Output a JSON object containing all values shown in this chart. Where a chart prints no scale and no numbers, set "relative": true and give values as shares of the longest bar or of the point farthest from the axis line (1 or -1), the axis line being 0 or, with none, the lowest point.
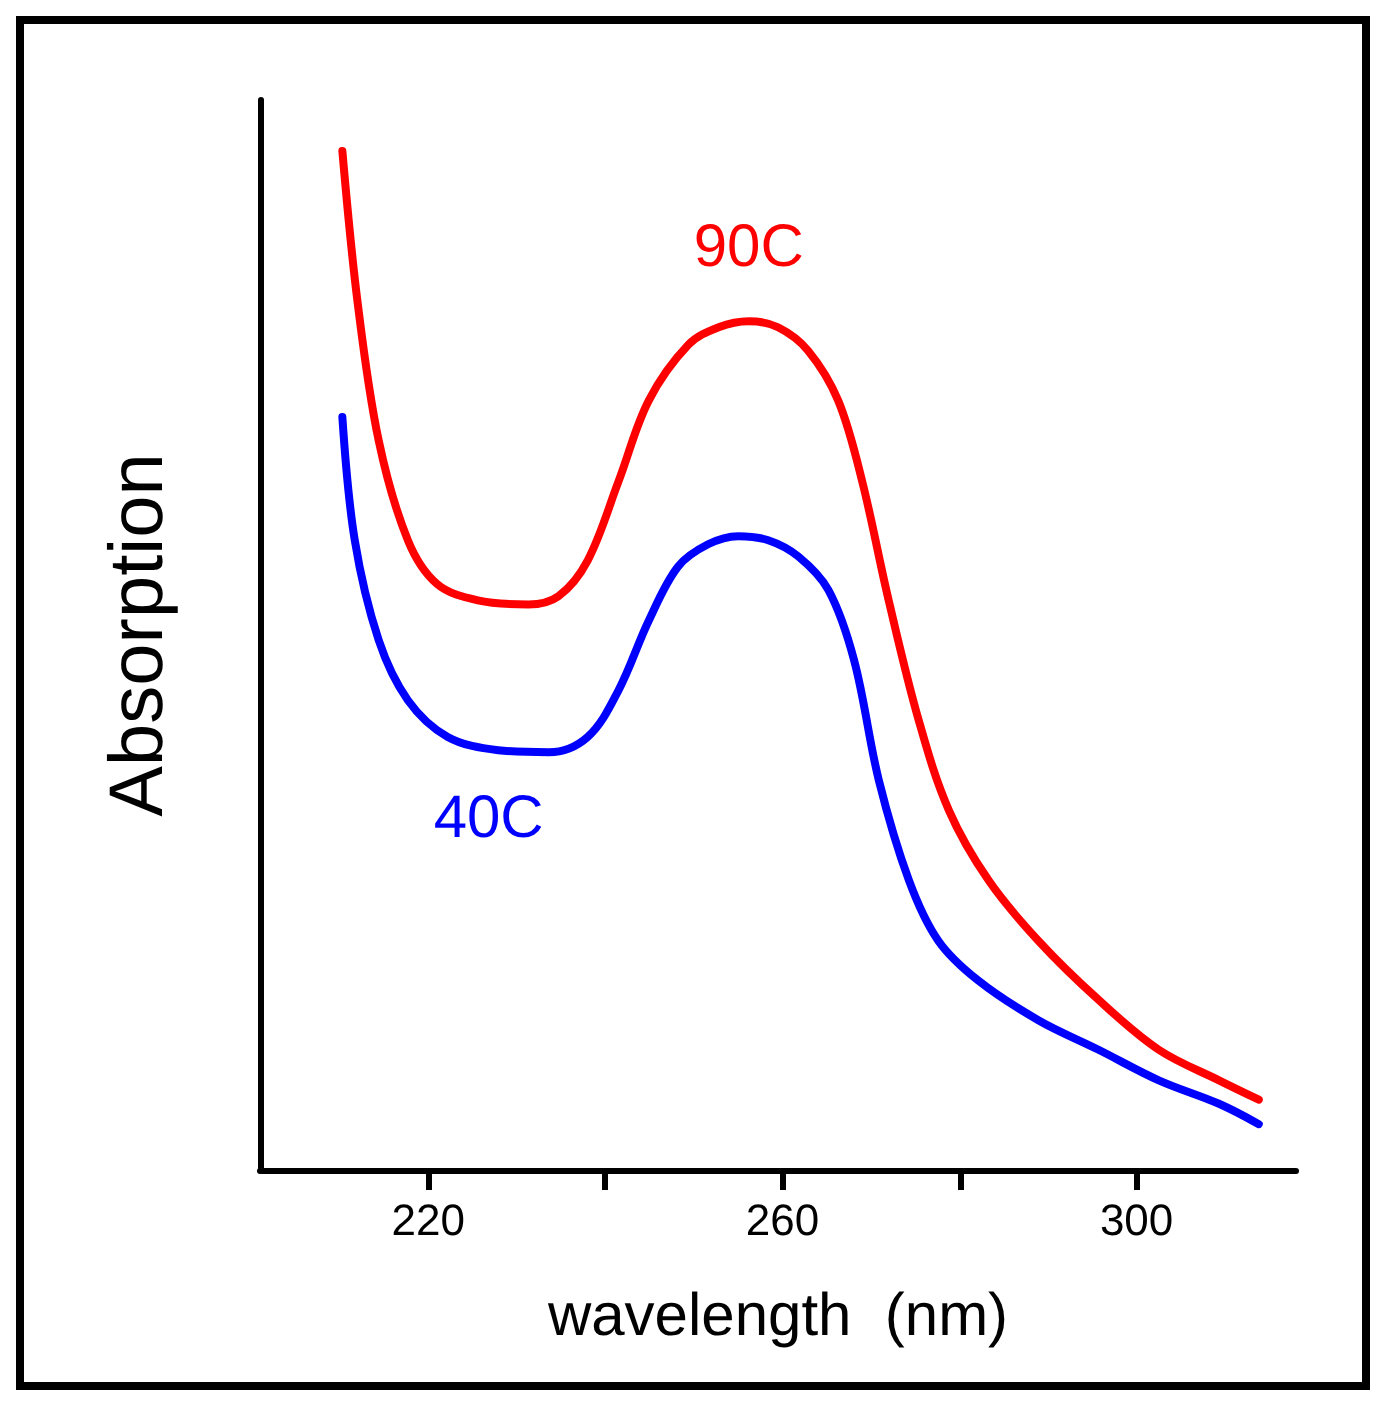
{
  "chart_data": {
    "type": "line",
    "xlabel": "wavelength  (nm)",
    "ylabel": "Absorption",
    "relative": true,
    "xlim": [
      201,
      318
    ],
    "xticks": [
      220,
      {
        "value": 240,
        "label": null
      },
      260,
      {
        "value": 280,
        "label": null
      },
      300
    ],
    "grid": false,
    "legend": false,
    "marker": "none",
    "line_style": "solid",
    "series": [
      {
        "name": "90C",
        "color": "#ff0000",
        "x": [
          210.3,
          212,
          214.4,
          217.7,
          221,
          225.6,
          231.3,
          234.7,
          238,
          241.5,
          244.9,
          249.4,
          252.8,
          256.2,
          259.5,
          262.9,
          266.3,
          269,
          272,
          275.4,
          278.8,
          283.3,
          288.9,
          295.7,
          302.5,
          309.3,
          313.8
        ],
        "values": [
          1,
          0.853,
          0.716,
          0.618,
          0.575,
          0.559,
          0.555,
          0.563,
          0.598,
          0.676,
          0.755,
          0.81,
          0.827,
          0.833,
          0.827,
          0.804,
          0.755,
          0.676,
          0.559,
          0.441,
          0.353,
          0.284,
          0.225,
          0.167,
          0.118,
          0.088,
          0.069
        ]
      },
      {
        "name": "40C",
        "color": "#0000ff",
        "x": [
          210.3,
          211.7,
          214.4,
          217.7,
          222.2,
          227.9,
          233.6,
          238,
          241.5,
          244.9,
          248.2,
          251.6,
          255,
          258.4,
          261.8,
          265.2,
          268.1,
          270.9,
          274.3,
          277.6,
          282.1,
          288.9,
          295.7,
          302.5,
          309.3,
          313.8
        ],
        "values": [
          0.739,
          0.618,
          0.52,
          0.461,
          0.425,
          0.412,
          0.41,
          0.425,
          0.471,
          0.539,
          0.592,
          0.614,
          0.622,
          0.618,
          0.602,
          0.569,
          0.5,
          0.382,
          0.284,
          0.225,
          0.186,
          0.147,
          0.118,
          0.088,
          0.065,
          0.045
        ]
      }
    ]
  }
}
